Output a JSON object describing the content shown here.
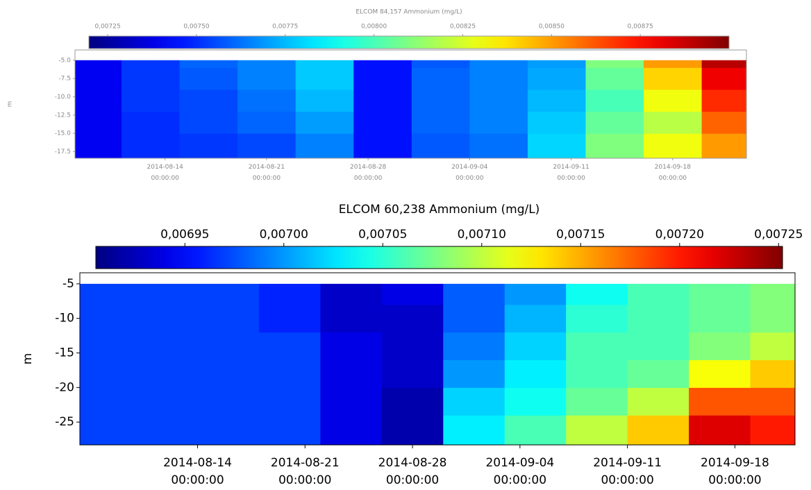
{
  "chart_data": [
    {
      "type": "heatmap",
      "title": "ELCOM 84,157 Ammonium (mg/L)",
      "ylabel": "m",
      "colormap": "jet",
      "clim": [
        0.007197,
        0.009
      ],
      "cticks": [
        {
          "value": 0.00725,
          "label": "0,00725"
        },
        {
          "value": 0.0075,
          "label": "0,00750"
        },
        {
          "value": 0.00775,
          "label": "0,00775"
        },
        {
          "value": 0.008,
          "label": "0,00800"
        },
        {
          "value": 0.00825,
          "label": "0,00825"
        },
        {
          "value": 0.0085,
          "label": "0,00850"
        },
        {
          "value": 0.00875,
          "label": "0,00875"
        }
      ],
      "xlim": [
        "2014-08-07 19:00:00",
        "2014-09-23 02:00:00"
      ],
      "xticks": [
        "2014-08-14 00:00:00",
        "2014-08-21 00:00:00",
        "2014-08-28 00:00:00",
        "2014-09-04 00:00:00",
        "2014-09-11 00:00:00",
        "2014-09-18 00:00:00"
      ],
      "ylim": [
        -18.4,
        -3.6
      ],
      "yticks": [
        {
          "value": -17.5,
          "label": "-17.5"
        },
        {
          "value": -15,
          "label": "-15.0"
        },
        {
          "value": -12.5,
          "label": "-12.5"
        },
        {
          "value": -10,
          "label": "-10.0"
        },
        {
          "value": -7.5,
          "label": "-7.5"
        },
        {
          "value": -5,
          "label": "-5.0"
        }
      ],
      "x_bins": [
        "2014-08-07 19:00:00",
        "2014-08-11 00:00:00",
        "2014-08-15 00:00:00",
        "2014-08-19 00:00:00",
        "2014-08-23 00:00:00",
        "2014-08-27 00:00:00",
        "2014-08-31 00:00:00",
        "2014-09-04 00:00:00",
        "2014-09-08 00:00:00",
        "2014-09-12 00:00:00",
        "2014-09-16 00:00:00",
        "2014-09-20 00:00:00",
        "2014-09-23 02:00:00"
      ],
      "y_bins": [
        -18.4,
        -15,
        -12,
        -9,
        -6,
        -5
      ],
      "values": [
        [
          0.0074,
          0.0075,
          0.00752,
          0.00755,
          0.00765,
          0.00745,
          0.00758,
          0.00762,
          0.0078,
          0.0081,
          0.0083,
          0.0085
        ],
        [
          0.0074,
          0.0075,
          0.00755,
          0.0076,
          0.0077,
          0.00745,
          0.0076,
          0.00765,
          0.00778,
          0.00805,
          0.0082,
          0.0086
        ],
        [
          0.0074,
          0.00752,
          0.00755,
          0.00762,
          0.00775,
          0.00745,
          0.0076,
          0.00765,
          0.00775,
          0.008,
          0.0083,
          0.0087
        ],
        [
          0.0074,
          0.00752,
          0.00758,
          0.00765,
          0.00778,
          0.00745,
          0.0076,
          0.00765,
          0.00772,
          0.00805,
          0.0084,
          0.0088
        ],
        [
          0.0074,
          0.00752,
          0.0076,
          0.00765,
          0.00778,
          0.00745,
          0.00758,
          0.00765,
          0.0077,
          0.0081,
          0.0085,
          0.0089
        ]
      ]
    },
    {
      "type": "heatmap",
      "title": "ELCOM 60,238 Ammonium (mg/L)",
      "ylabel": "m",
      "colormap": "jet",
      "clim": [
        0.006905,
        0.007252
      ],
      "cticks": [
        {
          "value": 0.00695,
          "label": "0,00695"
        },
        {
          "value": 0.007,
          "label": "0,00700"
        },
        {
          "value": 0.00705,
          "label": "0,00705"
        },
        {
          "value": 0.0071,
          "label": "0,00710"
        },
        {
          "value": 0.00715,
          "label": "0,00715"
        },
        {
          "value": 0.0072,
          "label": "0,00720"
        },
        {
          "value": 0.00725,
          "label": "0,00725"
        }
      ],
      "xlim": [
        "2014-08-06 08:00:00",
        "2014-09-21 22:00:00"
      ],
      "xticks": [
        "2014-08-14 00:00:00",
        "2014-08-21 00:00:00",
        "2014-08-28 00:00:00",
        "2014-09-04 00:00:00",
        "2014-09-11 00:00:00",
        "2014-09-18 00:00:00"
      ],
      "ylim": [
        -28.3,
        -3.4
      ],
      "yticks": [
        -25,
        -20,
        -15,
        -10,
        -5
      ],
      "x_bins": [
        "2014-08-06 08:00:00",
        "2014-08-10 00:00:00",
        "2014-08-14 00:00:00",
        "2014-08-18 00:00:00",
        "2014-08-22 00:00:00",
        "2014-08-26 00:00:00",
        "2014-08-30 00:00:00",
        "2014-09-03 00:00:00",
        "2014-09-07 00:00:00",
        "2014-09-11 00:00:00",
        "2014-09-15 00:00:00",
        "2014-09-19 00:00:00",
        "2014-09-21 22:00:00"
      ],
      "y_bins": [
        -28.3,
        -24,
        -20,
        -16,
        -12,
        -8,
        -5
      ],
      "values": [
        [
          0.00697,
          0.00697,
          0.00697,
          0.00697,
          0.00694,
          0.00692,
          0.00703,
          0.00706,
          0.0071,
          0.00714,
          0.00722,
          0.0072
        ],
        [
          0.00697,
          0.00697,
          0.00697,
          0.00697,
          0.00694,
          0.00692,
          0.00702,
          0.00704,
          0.00707,
          0.0071,
          0.00718,
          0.00718
        ],
        [
          0.00697,
          0.00697,
          0.00697,
          0.00697,
          0.00694,
          0.00693,
          0.007,
          0.00703,
          0.00706,
          0.00707,
          0.00712,
          0.00714
        ],
        [
          0.00697,
          0.00697,
          0.00697,
          0.00697,
          0.00694,
          0.00693,
          0.00699,
          0.00702,
          0.00706,
          0.00706,
          0.00708,
          0.0071
        ],
        [
          0.00697,
          0.00697,
          0.00697,
          0.00696,
          0.00693,
          0.00693,
          0.00698,
          0.00701,
          0.00705,
          0.00706,
          0.00707,
          0.00708
        ],
        [
          0.00697,
          0.00697,
          0.00697,
          0.00696,
          0.00693,
          0.00694,
          0.00698,
          0.007,
          0.00704,
          0.00706,
          0.00707,
          0.00708
        ]
      ]
    }
  ]
}
